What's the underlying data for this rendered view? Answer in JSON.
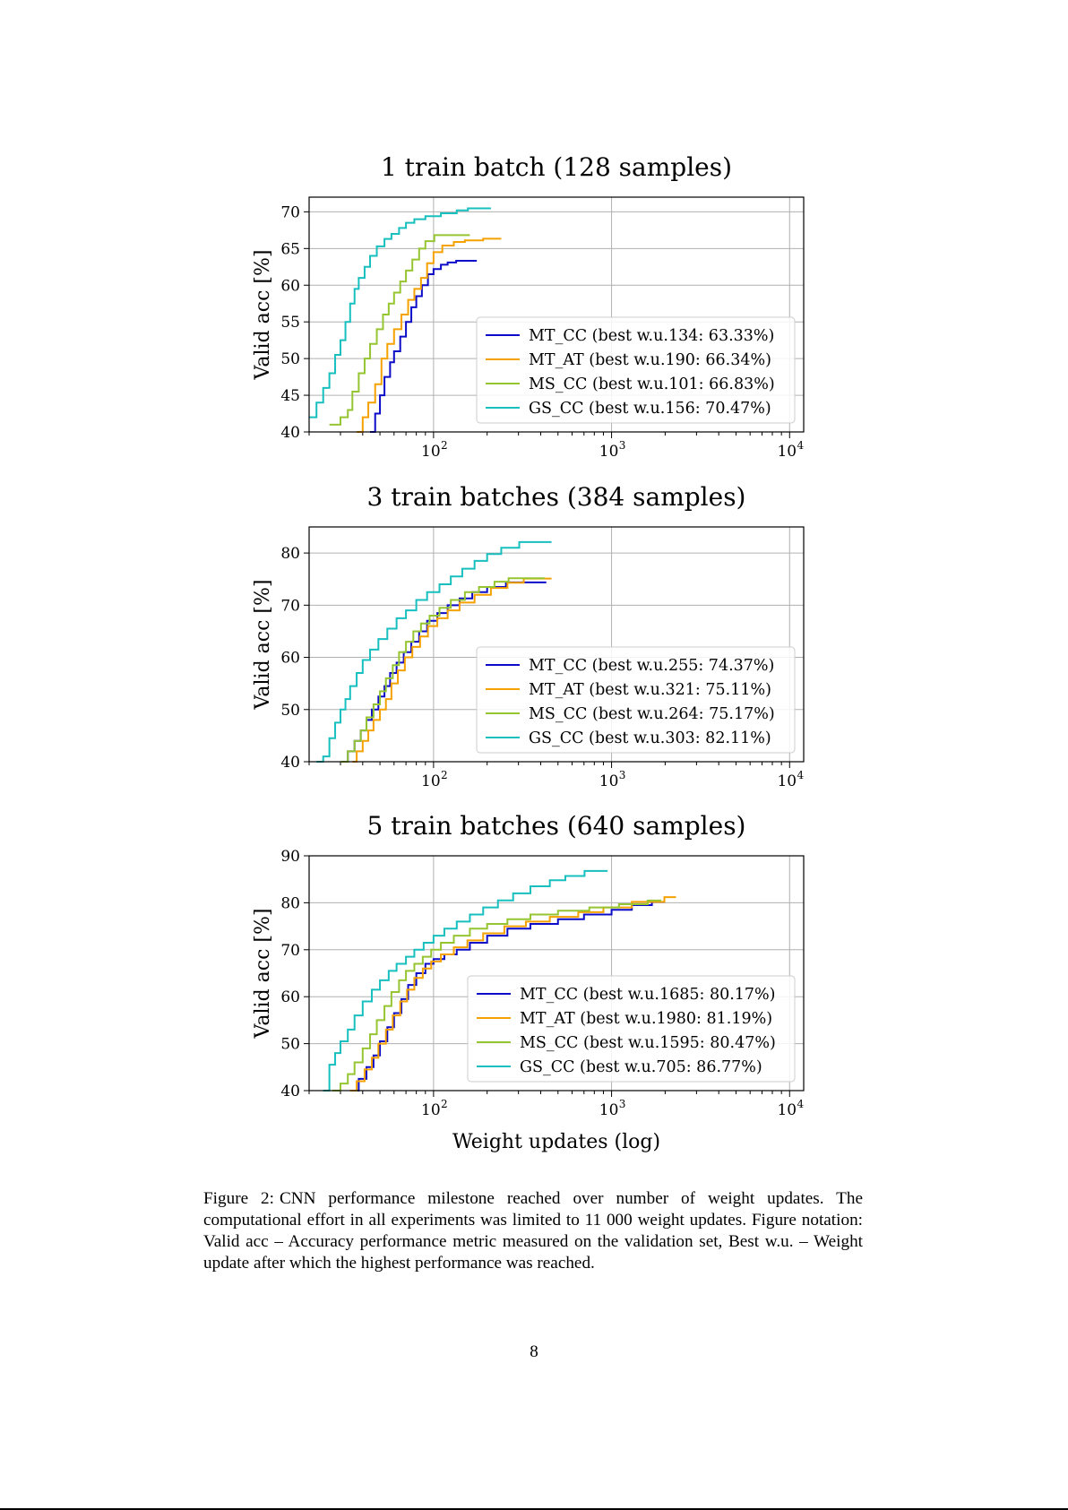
{
  "chart_data": [
    {
      "type": "line",
      "title": "1 train batch (128 samples)",
      "xlabel": "",
      "ylabel": "Valid acc [%]",
      "xscale": "log",
      "xlim": [
        20,
        12000
      ],
      "ylim": [
        40,
        72
      ],
      "yticks": [
        40,
        45,
        50,
        55,
        60,
        65,
        70
      ],
      "xtick_labels": [
        "10",
        "10",
        "10"
      ],
      "xtick_exponents": [
        "2",
        "3",
        "4"
      ],
      "xtick_values": [
        100,
        1000,
        10000
      ],
      "legend_position": "lower-right",
      "grid": true,
      "series": [
        {
          "name": "MT_CC (best w.u.134: 63.33%)",
          "color": "#0c0cc8",
          "x": [
            44,
            47,
            50,
            53,
            57,
            60,
            65,
            70,
            75,
            80,
            86,
            93,
            100,
            110,
            120,
            134,
            175
          ],
          "y": [
            40,
            42.5,
            45,
            47.5,
            49.5,
            51,
            53,
            55,
            57,
            58.5,
            60,
            61.5,
            62.2,
            62.8,
            63.1,
            63.33,
            63.33
          ]
        },
        {
          "name": "MT_AT (best w.u.190: 66.34%)",
          "color": "#f5a100",
          "x": [
            37,
            40,
            43,
            47,
            51,
            55,
            60,
            66,
            72,
            78,
            85,
            92,
            100,
            112,
            130,
            150,
            190,
            240
          ],
          "y": [
            40,
            42,
            44,
            46.5,
            50,
            52,
            54,
            56,
            58,
            59.5,
            61,
            63,
            64.5,
            65.4,
            65.9,
            66.1,
            66.34,
            66.34
          ]
        },
        {
          "name": "MS_CC (best w.u.101: 66.83%)",
          "color": "#95c531",
          "x": [
            26,
            30,
            33,
            35,
            38,
            41,
            44,
            48,
            52,
            56,
            60,
            65,
            70,
            76,
            83,
            90,
            101,
            160
          ],
          "y": [
            41,
            42,
            43,
            45.5,
            48,
            50,
            52,
            54,
            56,
            57.5,
            59,
            60.5,
            62,
            63.5,
            65,
            66,
            66.83,
            66.83
          ]
        },
        {
          "name": "GS_CC (best w.u.156: 70.47%)",
          "color": "#18bfbf",
          "x": [
            20,
            22,
            24,
            26,
            28,
            30,
            32,
            34,
            36,
            38,
            41,
            44,
            48,
            53,
            58,
            64,
            70,
            78,
            90,
            110,
            135,
            156,
            210
          ],
          "y": [
            42,
            44,
            46,
            48,
            50.5,
            52.5,
            55,
            57.5,
            59.5,
            61,
            62.5,
            64,
            65.3,
            66.3,
            67,
            67.8,
            68.5,
            69,
            69.4,
            69.8,
            70.2,
            70.47,
            70.47
          ]
        }
      ]
    },
    {
      "type": "line",
      "title": "3 train batches (384 samples)",
      "xlabel": "",
      "ylabel": "Valid acc [%]",
      "xscale": "log",
      "xlim": [
        20,
        12000
      ],
      "ylim": [
        40,
        85
      ],
      "yticks": [
        40,
        50,
        60,
        70,
        80
      ],
      "xtick_labels": [
        "10",
        "10",
        "10"
      ],
      "xtick_exponents": [
        "2",
        "3",
        "4"
      ],
      "xtick_values": [
        100,
        1000,
        10000
      ],
      "legend_position": "lower-right",
      "grid": true,
      "series": [
        {
          "name": "MT_CC (best w.u.255: 74.37%)",
          "color": "#0c0cc8",
          "x": [
            31,
            33,
            36,
            39,
            42,
            45,
            49,
            53,
            57,
            62,
            68,
            75,
            83,
            92,
            105,
            120,
            140,
            165,
            200,
            255,
            430
          ],
          "y": [
            40,
            42,
            44,
            46,
            48,
            50,
            52.5,
            54.5,
            57,
            59,
            61,
            63,
            65,
            67,
            68.5,
            70,
            71.3,
            72.5,
            73.5,
            74.37,
            74.37
          ]
        },
        {
          "name": "MT_AT (best w.u.321: 75.11%)",
          "color": "#f5a100",
          "x": [
            35,
            37,
            40,
            43,
            46,
            50,
            54,
            58,
            63,
            69,
            76,
            84,
            93,
            105,
            120,
            140,
            170,
            210,
            260,
            321,
            460
          ],
          "y": [
            40,
            42,
            44,
            46,
            48,
            50,
            52,
            55,
            57.5,
            60,
            62,
            64,
            66,
            67.5,
            69,
            70.5,
            72,
            73.3,
            74.3,
            75.11,
            75.11
          ]
        },
        {
          "name": "MS_CC (best w.u.264: 75.17%)",
          "color": "#95c531",
          "x": [
            30,
            33,
            36,
            39,
            42,
            46,
            50,
            54,
            59,
            64,
            70,
            77,
            85,
            95,
            108,
            125,
            150,
            180,
            220,
            264,
            420
          ],
          "y": [
            40,
            42,
            44,
            46,
            48.5,
            51,
            53.5,
            56,
            58.5,
            61,
            63,
            65,
            66.5,
            68,
            69.5,
            71,
            72.5,
            73.5,
            74.5,
            75.17,
            75.17
          ]
        },
        {
          "name": "GS_CC (best w.u.303: 82.11%)",
          "color": "#18bfbf",
          "x": [
            22,
            24,
            26,
            28,
            30,
            32,
            34,
            37,
            40,
            44,
            49,
            55,
            62,
            70,
            80,
            92,
            108,
            125,
            145,
            170,
            200,
            240,
            303,
            460
          ],
          "y": [
            40,
            41,
            44.5,
            47.5,
            50,
            52,
            54.5,
            57,
            59.5,
            61.5,
            63.5,
            65.5,
            67.5,
            69,
            71,
            72.5,
            74,
            75.5,
            77,
            78.5,
            79.8,
            81,
            82.11,
            82.11
          ]
        }
      ]
    },
    {
      "type": "line",
      "title": "5 train batches (640 samples)",
      "xlabel": "Weight updates (log)",
      "ylabel": "Valid acc [%]",
      "xscale": "log",
      "xlim": [
        20,
        12000
      ],
      "ylim": [
        40,
        90
      ],
      "yticks": [
        40,
        50,
        60,
        70,
        80,
        90
      ],
      "xtick_labels": [
        "10",
        "10",
        "10"
      ],
      "xtick_exponents": [
        "2",
        "3",
        "4"
      ],
      "xtick_values": [
        100,
        1000,
        10000
      ],
      "legend_position": "lower-right",
      "grid": true,
      "series": [
        {
          "name": "MT_CC (best w.u.1685: 80.17%)",
          "color": "#0c0cc8",
          "x": [
            35,
            38,
            42,
            46,
            50,
            55,
            60,
            66,
            72,
            80,
            90,
            100,
            115,
            135,
            160,
            200,
            260,
            350,
            500,
            700,
            1000,
            1300,
            1685,
            2000
          ],
          "y": [
            40,
            42.5,
            45,
            47.5,
            50.5,
            53.5,
            56.5,
            59.5,
            62.5,
            65,
            67,
            68,
            69,
            70,
            71.5,
            73,
            74.5,
            75.5,
            76.5,
            77.5,
            78.5,
            79.5,
            80.17,
            80.17
          ]
        },
        {
          "name": "MT_AT (best w.u.1980: 81.19%)",
          "color": "#f5a100",
          "x": [
            34,
            37,
            41,
            45,
            49,
            54,
            59,
            65,
            71,
            78,
            87,
            97,
            110,
            130,
            155,
            190,
            250,
            330,
            450,
            650,
            900,
            1300,
            1980,
            2300
          ],
          "y": [
            40,
            42,
            44.5,
            47,
            50,
            53,
            56,
            59,
            61.5,
            64,
            66,
            67.5,
            69,
            70.5,
            72,
            73.5,
            75,
            76,
            77,
            78,
            79,
            80.2,
            81.19,
            81.19
          ]
        },
        {
          "name": "MS_CC (best w.u.1595: 80.47%)",
          "color": "#95c531",
          "x": [
            27,
            30,
            33,
            36,
            40,
            44,
            48,
            53,
            58,
            64,
            70,
            78,
            87,
            97,
            110,
            130,
            160,
            200,
            260,
            350,
            500,
            750,
            1100,
            1595,
            1900
          ],
          "y": [
            40,
            41.5,
            43.5,
            46,
            49,
            52,
            55,
            58,
            61,
            63.5,
            65.5,
            67,
            68.5,
            70,
            71.5,
            73,
            74.5,
            75.5,
            76.5,
            77.5,
            78.3,
            79,
            79.7,
            80.47,
            80.47
          ]
        },
        {
          "name": "GS_CC (best w.u.705: 86.77%)",
          "color": "#18bfbf",
          "x": [
            24,
            26,
            28,
            30,
            33,
            36,
            40,
            45,
            50,
            56,
            62,
            70,
            78,
            88,
            100,
            115,
            135,
            160,
            190,
            230,
            280,
            350,
            450,
            550,
            705,
            950
          ],
          "y": [
            40,
            45.5,
            48,
            50.5,
            53,
            56,
            59,
            61.5,
            63.5,
            65.5,
            67,
            68.5,
            70,
            71.5,
            73,
            74.5,
            76,
            77.5,
            79,
            80.5,
            82,
            83.5,
            84.8,
            85.7,
            86.77,
            86.77
          ]
        }
      ]
    }
  ],
  "caption": {
    "label": "Figure 2:",
    "text": "CNN performance milestone reached over number of weight updates. The computational effort in all experiments was limited to 11 000 weight updates. Figure notation: Valid acc – Accuracy performance metric measured on the validation set, Best w.u. – Weight update after which the highest performance was reached."
  },
  "page_number": "8"
}
